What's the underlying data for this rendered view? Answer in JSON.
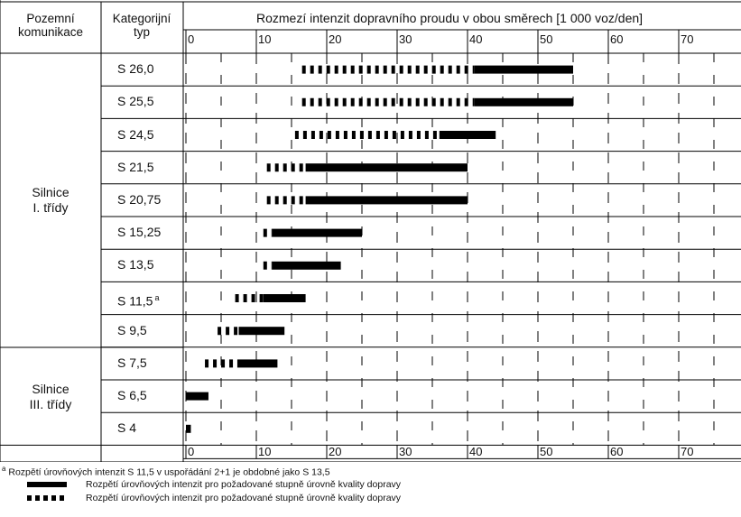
{
  "header": {
    "col1_line1": "Pozemní",
    "col1_line2": "komunikace",
    "col2_line1": "Kategorijní",
    "col2_line2": "typ",
    "chart_title": "Rozmezí intenzit dopravního proudu v obou směrech [1 000 voz/den]"
  },
  "groups": [
    {
      "line1": "Silnice",
      "line2": "I. třídy"
    },
    {
      "line1": "Silnice",
      "line2": "III. třídy"
    }
  ],
  "footnote": {
    "marker": "a",
    "text": "Rozpětí úrovňových intenzit S 11,5 v uspořádání 2+1 je obdobné jako S 13,5"
  },
  "legend": {
    "solid": "Rozpětí úrovňových intenzit pro požadované stupně úrovně kvality dopravy",
    "dashed": "Rozpětí úrovňových intenzit pro požadované stupně úrovně kvality dopravy"
  },
  "chart_data": {
    "type": "bar",
    "title": "Rozmezí intenzit dopravního proudu v obou směrech [1 000 voz/den]",
    "xlabel": "",
    "ylabel": "Kategorijní typ",
    "xlim": [
      0,
      80
    ],
    "x_ticks": [
      "0",
      "10",
      "20",
      "30",
      "40",
      "50",
      "60",
      "70",
      "80"
    ],
    "grid": true,
    "series_names": [
      "solid",
      "dashed"
    ],
    "colors": {
      "bar": "#000000",
      "grid": "#000000"
    },
    "rows": [
      {
        "category": "S 26,0",
        "sup": "",
        "dashed": [
          16.5,
          41
        ],
        "solid": [
          41,
          55
        ]
      },
      {
        "category": "S 25,5",
        "sup": "",
        "dashed": [
          16.5,
          41
        ],
        "solid": [
          41,
          55
        ]
      },
      {
        "category": "S 24,5",
        "sup": "",
        "dashed": [
          15.5,
          36
        ],
        "solid": [
          36,
          44
        ]
      },
      {
        "category": "S 21,5",
        "sup": "",
        "dashed": [
          11.5,
          17
        ],
        "solid": [
          17,
          40
        ]
      },
      {
        "category": "S 20,75",
        "sup": "",
        "dashed": [
          11.5,
          17
        ],
        "solid": [
          17,
          40
        ]
      },
      {
        "category": "S 15,25",
        "sup": "",
        "dashed": [
          11,
          12.2
        ],
        "solid": [
          12.2,
          25
        ]
      },
      {
        "category": "S 13,5",
        "sup": "",
        "dashed": [
          11,
          12.2
        ],
        "solid": [
          12.2,
          22
        ]
      },
      {
        "category": "S 11,5",
        "sup": "a",
        "dashed": [
          7,
          11
        ],
        "solid": [
          11,
          17
        ]
      },
      {
        "category": "S 9,5",
        "sup": "",
        "dashed": [
          4.5,
          7.5
        ],
        "solid": [
          7.5,
          14
        ]
      },
      {
        "category": "S 7,5",
        "sup": "",
        "dashed": [
          2.7,
          7.3
        ],
        "solid": [
          7.3,
          13
        ]
      },
      {
        "category": "S 6,5",
        "sup": "",
        "dashed": null,
        "solid": [
          0,
          3.2
        ]
      },
      {
        "category": "S 4",
        "sup": "",
        "dashed": null,
        "solid": [
          0,
          0.7
        ]
      }
    ]
  }
}
